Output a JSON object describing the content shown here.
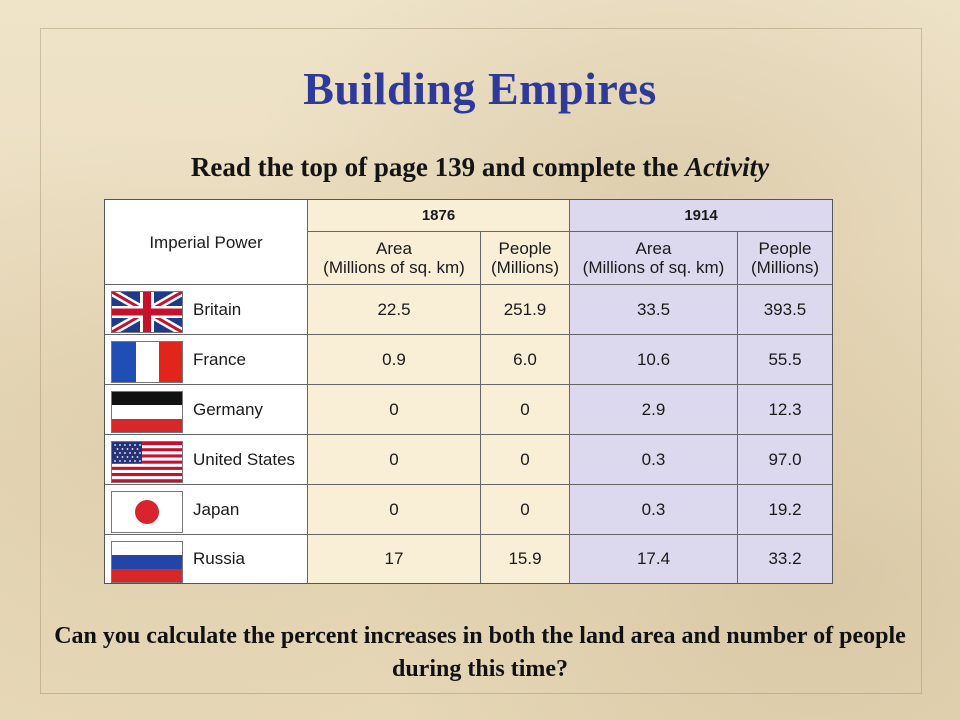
{
  "slide": {
    "title": "Building Empires",
    "subtitle_main": "Read the top of page 139 and complete the ",
    "subtitle_italic": "Activity",
    "question": "Can you calculate the percent increases in both the land area and number of people during this time?"
  },
  "table": {
    "header": {
      "imperial_power": "Imperial Power",
      "year_a": "1876",
      "year_b": "1914",
      "area_line1": "Area",
      "area_line2": "(Millions of sq. km)",
      "people_line1": "People",
      "people_line2": "(Millions)"
    },
    "rows": [
      {
        "country": "Britain",
        "flag_icon": "uk-flag-icon",
        "area_1876": "22.5",
        "people_1876": "251.9",
        "area_1914": "33.5",
        "people_1914": "393.5"
      },
      {
        "country": "France",
        "flag_icon": "france-flag-icon",
        "area_1876": "0.9",
        "people_1876": "6.0",
        "area_1914": "10.6",
        "people_1914": "55.5"
      },
      {
        "country": "Germany",
        "flag_icon": "germany-flag-icon",
        "area_1876": "0",
        "people_1876": "0",
        "area_1914": "2.9",
        "people_1914": "12.3"
      },
      {
        "country": "United States",
        "flag_icon": "usa-flag-icon",
        "area_1876": "0",
        "people_1876": "0",
        "area_1914": "0.3",
        "people_1914": "97.0"
      },
      {
        "country": "Japan",
        "flag_icon": "japan-flag-icon",
        "area_1876": "0",
        "people_1876": "0",
        "area_1914": "0.3",
        "people_1914": "19.2"
      },
      {
        "country": "Russia",
        "flag_icon": "russia-flag-icon",
        "area_1876": "17",
        "people_1876": "15.9",
        "area_1914": "17.4",
        "people_1914": "33.2"
      }
    ]
  },
  "colors": {
    "title": "#2e3a9b",
    "col_1876": "#f8efd6",
    "col_1914": "#dcd9ef"
  }
}
